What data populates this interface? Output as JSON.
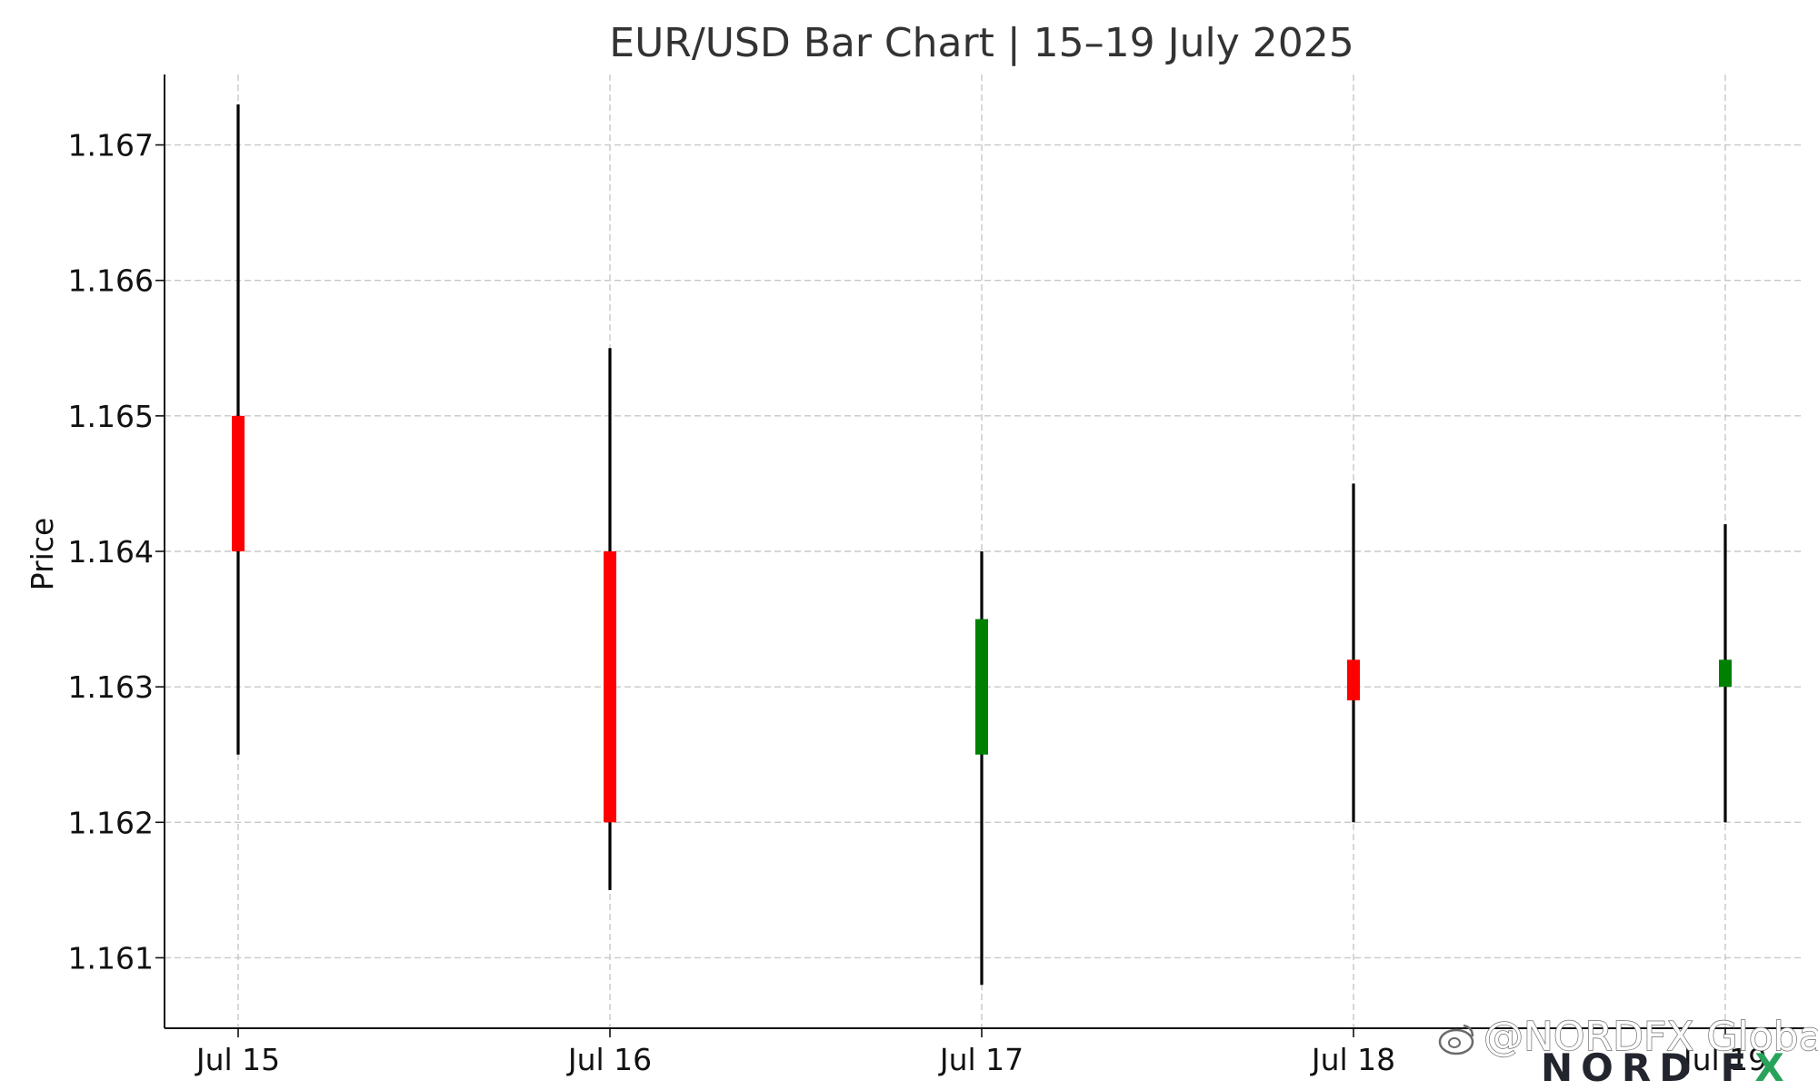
{
  "chart_data": {
    "type": "ohlc",
    "title": "EUR/USD Bar Chart | 15–19 July 2025",
    "xlabel": "",
    "ylabel": "Price",
    "categories": [
      "Jul 15",
      "Jul 16",
      "Jul 17",
      "Jul 18",
      "Jul 19"
    ],
    "ylim": [
      1.16048,
      1.16752
    ],
    "yticks": [
      1.161,
      1.162,
      1.163,
      1.164,
      1.165,
      1.166,
      1.167
    ],
    "ytick_labels": [
      "1.161",
      "1.162",
      "1.163",
      "1.164",
      "1.165",
      "1.166",
      "1.167"
    ],
    "grid": true,
    "bars": [
      {
        "date": "Jul 15",
        "open": 1.165,
        "high": 1.1673,
        "low": 1.1625,
        "close": 1.164,
        "color": "#ff0000"
      },
      {
        "date": "Jul 16",
        "open": 1.164,
        "high": 1.1655,
        "low": 1.1615,
        "close": 1.162,
        "color": "#ff0000"
      },
      {
        "date": "Jul 17",
        "open": 1.1625,
        "high": 1.164,
        "low": 1.1608,
        "close": 1.1635,
        "color": "#008000"
      },
      {
        "date": "Jul 18",
        "open": 1.1632,
        "high": 1.1645,
        "low": 1.162,
        "close": 1.1629,
        "color": "#ff0000"
      },
      {
        "date": "Jul 19",
        "open": 1.163,
        "high": 1.1642,
        "low": 1.162,
        "close": 1.1632,
        "color": "#008000"
      }
    ]
  },
  "watermark": {
    "text": "@NORDFX Global",
    "icon": "weibo-icon"
  },
  "logo": {
    "text_main": "NORD F",
    "text_x": "X",
    "accent_color": "#27a35a"
  }
}
